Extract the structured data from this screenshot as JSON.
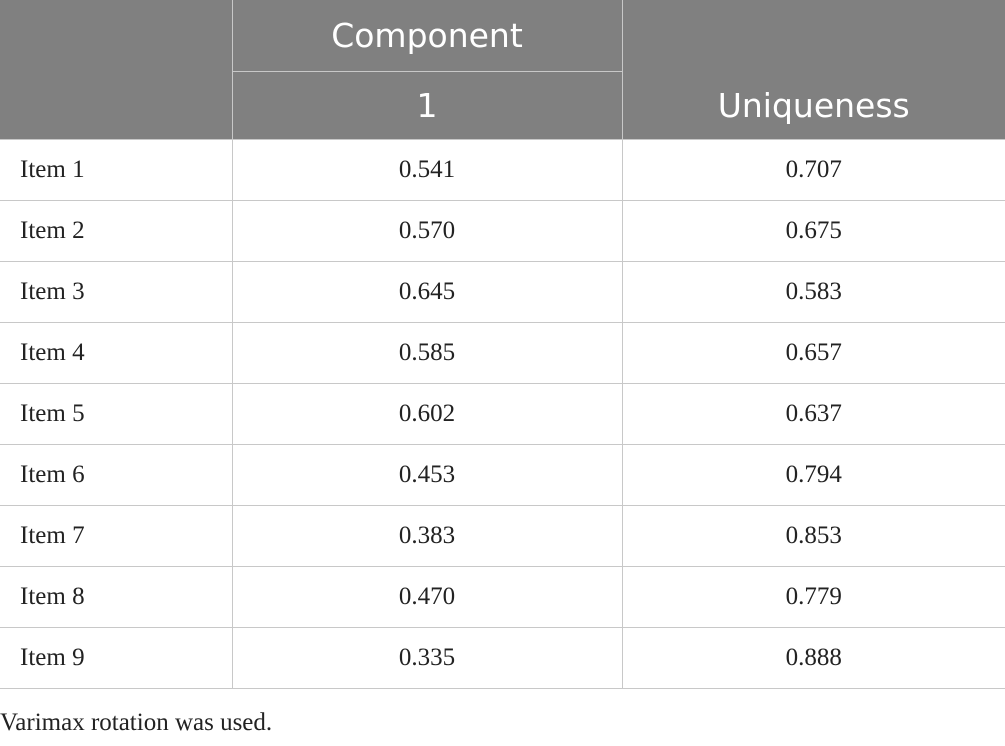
{
  "header": {
    "group_label": "Component",
    "component_number": "1",
    "uniqueness_label": "Uniqueness"
  },
  "rows": [
    {
      "item": "Item 1",
      "component": "0.541",
      "uniqueness": "0.707"
    },
    {
      "item": "Item 2",
      "component": "0.570",
      "uniqueness": "0.675"
    },
    {
      "item": "Item 3",
      "component": "0.645",
      "uniqueness": "0.583"
    },
    {
      "item": "Item 4",
      "component": "0.585",
      "uniqueness": "0.657"
    },
    {
      "item": "Item 5",
      "component": "0.602",
      "uniqueness": "0.637"
    },
    {
      "item": "Item 6",
      "component": "0.453",
      "uniqueness": "0.794"
    },
    {
      "item": "Item 7",
      "component": "0.383",
      "uniqueness": "0.853"
    },
    {
      "item": "Item 8",
      "component": "0.470",
      "uniqueness": "0.779"
    },
    {
      "item": "Item 9",
      "component": "0.335",
      "uniqueness": "0.888"
    }
  ],
  "footnote": "Varimax rotation was used.",
  "colors": {
    "header_background": "#808080",
    "header_text": "#ffffff",
    "grid_line": "#c8c8c8"
  }
}
